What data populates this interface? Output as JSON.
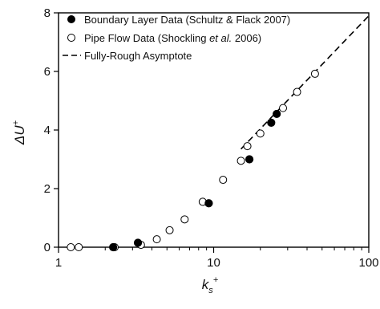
{
  "chart_data": {
    "type": "scatter",
    "xscale": "log",
    "xlim": [
      1,
      100
    ],
    "ylim": [
      0,
      8
    ],
    "xticks": [
      1,
      10,
      100
    ],
    "yticks": [
      0,
      2,
      4,
      6,
      8
    ],
    "xlabel": {
      "main": "k",
      "sub": "s",
      "sup": "+"
    },
    "ylabel": {
      "main": "ΔU",
      "sup": "+"
    },
    "legend_position": "top-left",
    "grid": false,
    "series": [
      {
        "name": "Boundary Layer Data (Schultz & Flack 2007)",
        "marker": "filled-circle",
        "color": "#000000",
        "points": [
          {
            "x": 2.25,
            "y": 0.0
          },
          {
            "x": 3.25,
            "y": 0.15
          },
          {
            "x": 9.3,
            "y": 1.5
          },
          {
            "x": 17.0,
            "y": 3.0
          },
          {
            "x": 23.5,
            "y": 4.25
          },
          {
            "x": 25.5,
            "y": 4.55
          }
        ]
      },
      {
        "name": "Pipe Flow Data (Shockling et al. 2006)",
        "name_parts": [
          "Pipe Flow Data (Shockling ",
          "et al.",
          " 2006)"
        ],
        "marker": "open-circle",
        "color": "#000000",
        "points": [
          {
            "x": 1.2,
            "y": 0.0
          },
          {
            "x": 1.35,
            "y": 0.0
          },
          {
            "x": 2.3,
            "y": 0.0
          },
          {
            "x": 3.4,
            "y": 0.08
          },
          {
            "x": 4.3,
            "y": 0.27
          },
          {
            "x": 5.2,
            "y": 0.58
          },
          {
            "x": 6.5,
            "y": 0.95
          },
          {
            "x": 8.5,
            "y": 1.55
          },
          {
            "x": 11.5,
            "y": 2.3
          },
          {
            "x": 15.0,
            "y": 2.95
          },
          {
            "x": 16.5,
            "y": 3.45
          },
          {
            "x": 20.0,
            "y": 3.88
          },
          {
            "x": 28.0,
            "y": 4.75
          },
          {
            "x": 34.5,
            "y": 5.3
          },
          {
            "x": 45.0,
            "y": 5.92
          }
        ]
      },
      {
        "name": "Fully-Rough Asymptote",
        "marker": "dashed-line",
        "color": "#000000",
        "points": [
          {
            "x": 15.0,
            "y": 3.35
          },
          {
            "x": 100.0,
            "y": 7.9
          }
        ]
      }
    ]
  }
}
